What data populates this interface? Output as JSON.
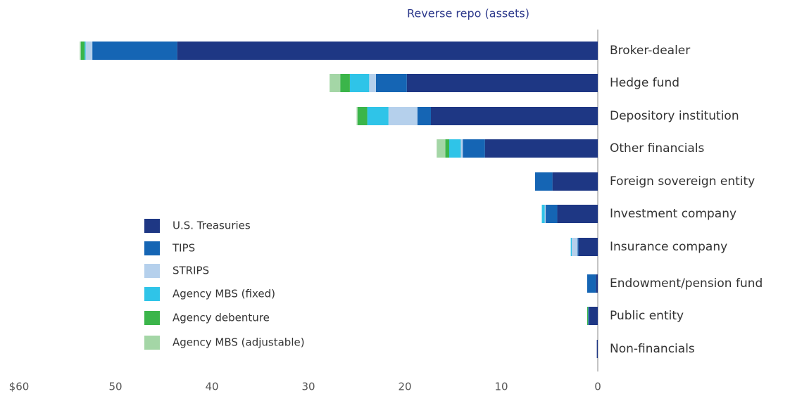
{
  "chart_data": {
    "type": "bar",
    "orientation": "horizontal",
    "stacked": true,
    "title": "Reverse repo (assets)",
    "categories": [
      "Broker-dealer",
      "Hedge fund",
      "Depository institution",
      "Other financials",
      "Foreign sovereign entity",
      "Investment company",
      "Insurance company",
      "Endowment/pension fund",
      "Public entity",
      "Non-financials"
    ],
    "series": [
      {
        "name": "U.S. Treasuries",
        "color": "#1e3784",
        "values": [
          43.6,
          19.8,
          17.3,
          11.7,
          4.7,
          4.2,
          2.0,
          0.2,
          0.9,
          0.1
        ]
      },
      {
        "name": "TIPS",
        "color": "#1565b4",
        "values": [
          8.8,
          3.2,
          1.4,
          2.3,
          1.8,
          1.2,
          0.1,
          0.9,
          0.1,
          0
        ]
      },
      {
        "name": "STRIPS",
        "color": "#b5d0ec",
        "values": [
          0.7,
          0.7,
          3.0,
          0.2,
          0,
          0.1,
          0.6,
          0,
          0,
          0
        ]
      },
      {
        "name": "Agency MBS (fixed)",
        "color": "#2fc4e8",
        "values": [
          0.1,
          2.0,
          2.2,
          1.2,
          0,
          0.3,
          0.1,
          0,
          0,
          0
        ]
      },
      {
        "name": "Agency debenture",
        "color": "#3bb54a",
        "values": [
          0.4,
          1.0,
          1.0,
          0.4,
          0,
          0,
          0,
          0,
          0.1,
          0
        ]
      },
      {
        "name": "Agency MBS (adjustable)",
        "color": "#a4d6a6",
        "values": [
          0.1,
          1.1,
          0.1,
          0.9,
          0,
          0,
          0,
          0,
          0,
          0
        ]
      }
    ],
    "xlim": [
      0,
      60
    ],
    "reversed": true,
    "xticks": [
      {
        "value": 60,
        "label": "$60"
      },
      50,
      40,
      30,
      20,
      10,
      0
    ]
  }
}
